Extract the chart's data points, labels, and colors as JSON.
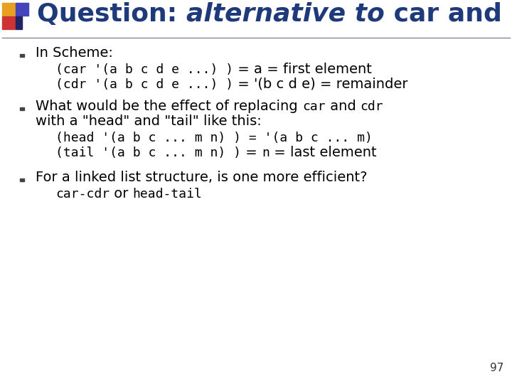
{
  "title_part1": "Question: ",
  "title_part2": "alternative to",
  "title_part3": " car and cdr",
  "title_color": "#1F3A7A",
  "background_color": "#FFFFFF",
  "slide_number": "97",
  "b1_header": "In Scheme:",
  "b1_code1": "(car '(a b c d e ...) )",
  "b1_rest1a": " = ",
  "b1_rest1b": "a",
  "b1_rest1c": " = first element",
  "b1_code2": "(cdr '(a b c d e ...) )",
  "b1_rest2": " = '(b c d e) = remainder",
  "b2_text1a": "What would be the effect of replacing ",
  "b2_text1b": "car",
  "b2_text1c": " and ",
  "b2_text1d": "cdr",
  "b2_text2": "with a \"head\" and \"tail\" like this:",
  "b2_code1": "(head '(a b c ... m n) )",
  "b2_rest1": " = '(a b c ... m)",
  "b2_code2": "(tail '(a b c ... m n) )",
  "b2_rest2a": " = ",
  "b2_rest2b": "n",
  "b2_rest2c": " = last element",
  "b3_text1": "For a linked list structure, is one more efficient?",
  "b3_code1": "car-cdr",
  "b3_text2": " or ",
  "b3_code2": "head-tail",
  "text_color": "#000000",
  "title_fontsize": 26,
  "body_fontsize": 14,
  "mono_fontsize": 13,
  "small_fontsize": 11,
  "sq_colors": [
    "#E8A020",
    "#CC3333",
    "#4444BB",
    "#222266"
  ]
}
